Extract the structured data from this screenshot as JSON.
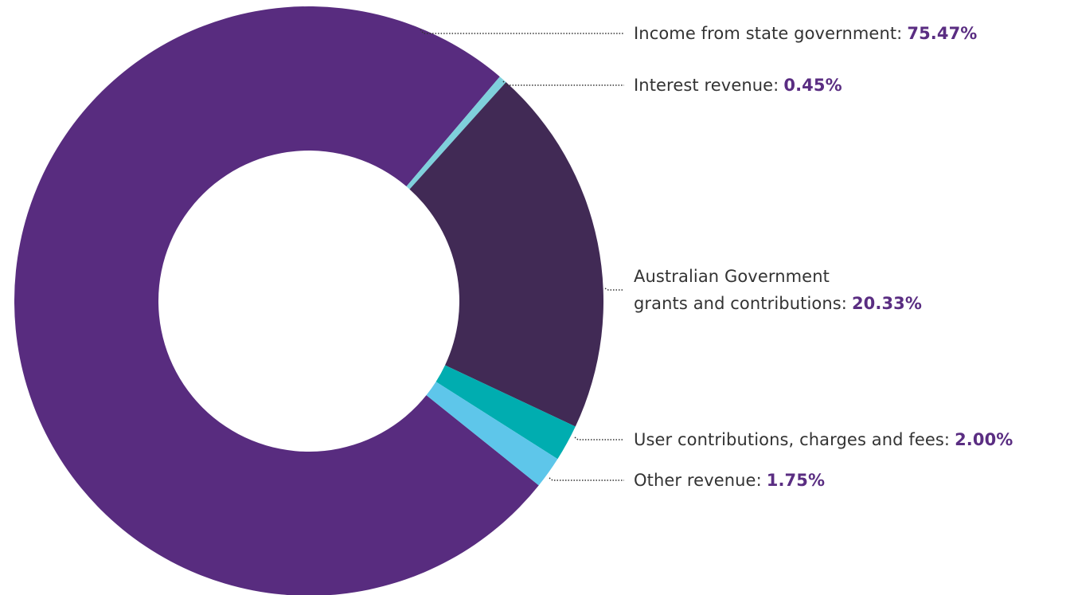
{
  "chart_data": {
    "type": "donut",
    "categories": [
      "Income from state government:",
      "Interest revenue:",
      "Australian Government\ngrants and contributions:",
      "User contributions, charges and fees:",
      "Other revenue:"
    ],
    "values": [
      75.47,
      0.45,
      20.33,
      2.0,
      1.75
    ],
    "value_labels": [
      "75.47%",
      "0.45%",
      "20.33%",
      "2.00%",
      "1.75%"
    ],
    "colors": [
      "#582c7f",
      "#7fd0dc",
      "#412a55",
      "#00adb0",
      "#5ec6ea"
    ]
  }
}
